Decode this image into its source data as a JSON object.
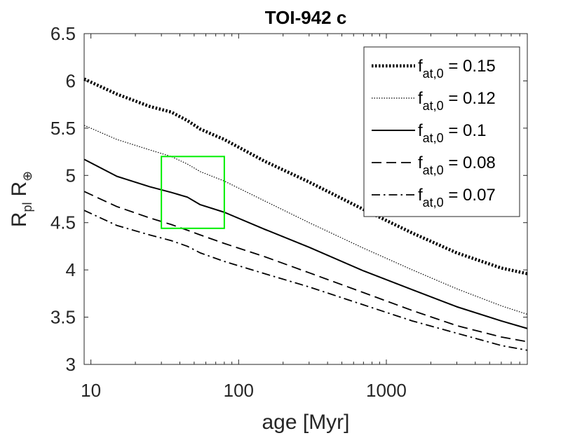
{
  "chart_data": {
    "type": "line",
    "title": "TOI-942 c",
    "xlabel": "age [Myr]",
    "ylabel_main": "R",
    "ylabel_sub": "pl",
    "ylabel_unit": "R",
    "ylabel_unit_sub": "⊕",
    "xscale": "log",
    "xlim": [
      9,
      9000
    ],
    "ylim": [
      3,
      6.5
    ],
    "x_ticks": [
      10,
      100,
      1000
    ],
    "x_tick_labels": [
      "10",
      "100",
      "1000"
    ],
    "y_ticks": [
      3,
      3.5,
      4,
      4.5,
      5,
      5.5,
      6,
      6.5
    ],
    "y_tick_labels": [
      "3",
      "3.5",
      "4",
      "4.5",
      "5",
      "5.5",
      "6",
      "6.5"
    ],
    "legend_position": "top-right",
    "highlight_box": {
      "x_range": [
        30,
        80
      ],
      "y_range": [
        4.44,
        5.2
      ],
      "color": "#00ee00"
    },
    "series": [
      {
        "name": "f_at,0 = 0.15",
        "legend_base": "f",
        "legend_sub": "at,0",
        "legend_value": " = 0.15",
        "style": "dotted-thick",
        "x": [
          9,
          15,
          25,
          35,
          45,
          55,
          80,
          150,
          300,
          700,
          1500,
          3000,
          6000,
          9000
        ],
        "y": [
          6.02,
          5.86,
          5.73,
          5.67,
          5.58,
          5.49,
          5.38,
          5.15,
          4.93,
          4.64,
          4.39,
          4.18,
          4.02,
          3.96
        ]
      },
      {
        "name": "f_at,0 = 0.12",
        "legend_base": "f",
        "legend_sub": "at,0",
        "legend_value": " = 0.12",
        "style": "dotted-thin",
        "x": [
          9,
          15,
          25,
          35,
          45,
          55,
          80,
          150,
          300,
          700,
          1500,
          3000,
          6000,
          9000
        ],
        "y": [
          5.53,
          5.38,
          5.27,
          5.2,
          5.12,
          5.04,
          4.94,
          4.73,
          4.5,
          4.23,
          4.0,
          3.8,
          3.62,
          3.53
        ]
      },
      {
        "name": "f_at,0 = 0.1",
        "legend_base": "f",
        "legend_sub": "at,0",
        "legend_value": " = 0.1",
        "style": "solid",
        "x": [
          9,
          15,
          25,
          35,
          45,
          55,
          80,
          150,
          300,
          700,
          1500,
          3000,
          6000,
          9000
        ],
        "y": [
          5.17,
          4.99,
          4.88,
          4.82,
          4.77,
          4.69,
          4.61,
          4.43,
          4.24,
          3.99,
          3.79,
          3.61,
          3.46,
          3.38
        ]
      },
      {
        "name": "f_at,0 = 0.08",
        "legend_base": "f",
        "legend_sub": "at,0",
        "legend_value": " = 0.08",
        "style": "dashed",
        "x": [
          9,
          15,
          25,
          35,
          45,
          55,
          80,
          150,
          300,
          700,
          1500,
          3000,
          6000,
          9000
        ],
        "y": [
          4.83,
          4.67,
          4.55,
          4.48,
          4.42,
          4.37,
          4.28,
          4.14,
          3.97,
          3.76,
          3.57,
          3.41,
          3.29,
          3.24
        ]
      },
      {
        "name": "f_at,0 = 0.07",
        "legend_base": "f",
        "legend_sub": "at,0",
        "legend_value": " = 0.07",
        "style": "dashdot",
        "x": [
          9,
          15,
          25,
          35,
          45,
          55,
          80,
          150,
          300,
          700,
          1500,
          3000,
          6000,
          9000
        ],
        "y": [
          4.63,
          4.47,
          4.37,
          4.31,
          4.25,
          4.18,
          4.09,
          3.96,
          3.82,
          3.63,
          3.46,
          3.33,
          3.2,
          3.15
        ]
      }
    ]
  }
}
